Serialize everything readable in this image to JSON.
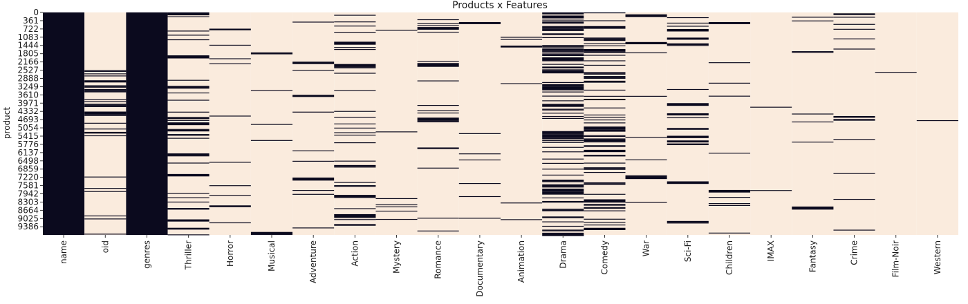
{
  "colors": {
    "present": "#0b0a1e",
    "missing": "#faebdd"
  },
  "chart_data": {
    "type": "heatmap",
    "title": "Products x Features",
    "xlabel": "",
    "ylabel": "product",
    "row_count": 9742,
    "y_tick_labels": [
      "0",
      "361",
      "722",
      "1083",
      "1444",
      "1805",
      "2166",
      "2527",
      "2888",
      "3249",
      "3610",
      "3971",
      "4332",
      "4693",
      "5054",
      "5415",
      "5776",
      "6137",
      "6498",
      "6859",
      "7220",
      "7581",
      "7942",
      "8303",
      "8664",
      "9025",
      "9386"
    ],
    "columns": [
      "name",
      "oid",
      "genres",
      "Thriller",
      "Horror",
      "Musical",
      "Adventure",
      "Action",
      "Mystery",
      "Romance",
      "Documentary",
      "Animation",
      "Drama",
      "Comedy",
      "War",
      "Sci-Fi",
      "Children",
      "IMAX",
      "Fantasy",
      "Crime",
      "Film-Noir",
      "Western"
    ],
    "legend": "none",
    "grid": false,
    "cell_values": {
      "present": 0,
      "missing": 1
    },
    "present_share": [
      1.0,
      0.27,
      1.0,
      0.2,
      0.1,
      0.04,
      0.13,
      0.19,
      0.06,
      0.15,
      0.04,
      0.06,
      0.45,
      0.39,
      0.04,
      0.1,
      0.07,
      0.02,
      0.08,
      0.12,
      0.01,
      0.01
    ],
    "oid_present_rows": [
      2527,
      5415
    ],
    "oid_present_share_in_range": 0.6,
    "oid_present_share_outside_range": 0.07
  }
}
